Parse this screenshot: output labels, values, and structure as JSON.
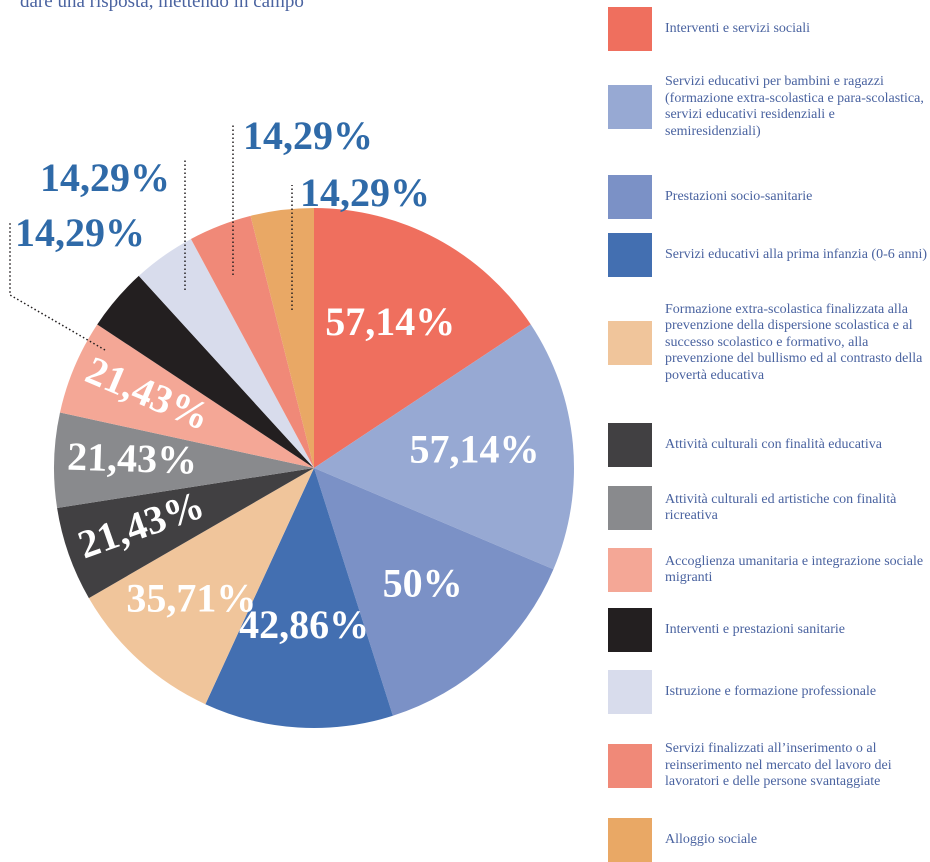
{
  "chart_data": {
    "type": "pie",
    "title": "dare una risposta, mettendo in campo",
    "categories": [
      "Interventi e servizi sociali",
      "Servizi educativi per bambini e ragazzi (formazione extra-scolastica e para-scolastica, servizi educativi residenziali e semiresidenziali)",
      "Prestazioni socio-sanitarie",
      "Servizi educativi alla prima infanzia (0-6 anni)",
      "Formazione extra-scolastica finalizzata alla prevenzione della dispersione scolastica e al successo scolastico e formativo, alla prevenzione del bullismo ed al contrasto della povertà educativa",
      "Attività culturali con finalità educativa",
      "Attività culturali ed artistiche con finalità ricreativa",
      "Accoglienza umanitaria e integrazione sociale migranti",
      "Interventi e prestazioni sanitarie",
      "Istruzione e formazione professionale",
      "Servizi finalizzati all’inserimento o al reinserimento nel mercato del lavoro dei lavoratori e delle persone svantaggiate",
      "Alloggio sociale"
    ],
    "values": [
      57.14,
      57.14,
      50,
      42.86,
      35.71,
      21.43,
      21.43,
      21.43,
      14.29,
      14.29,
      14.29,
      14.29
    ],
    "value_labels": [
      "57,14%",
      "57,14%",
      "50%",
      "42,86%",
      "35,71%",
      "21,43%",
      "21,43%",
      "21,43%",
      "14,29%",
      "14,29%",
      "14,29%",
      "14,29%"
    ],
    "colors": [
      "#ef6f5e",
      "#97a9d3",
      "#7b91c6",
      "#436fb1",
      "#f0c59b",
      "#414042",
      "#898a8d",
      "#f4a796",
      "#231f20",
      "#d8dcec",
      "#f08978",
      "#e9a865"
    ]
  }
}
